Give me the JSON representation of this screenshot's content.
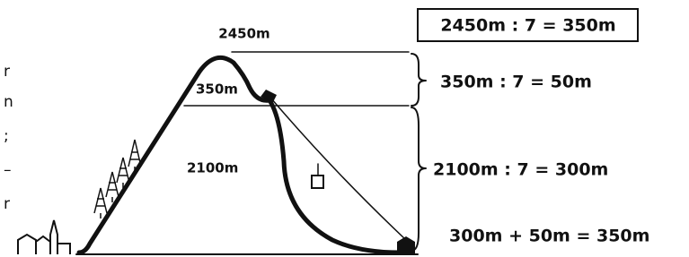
{
  "labels": {
    "peak": "2450m",
    "upper_part": "350m",
    "lower_part": "2100m"
  },
  "equations": {
    "boxed": "2450m : 7 = 350m",
    "upper": "350m : 7 = 50m",
    "lower": "2100m : 7 = 300m",
    "sum": "300m + 50m = 350m"
  },
  "left_fragments": [
    "r",
    "n",
    ";",
    "–",
    "r"
  ]
}
